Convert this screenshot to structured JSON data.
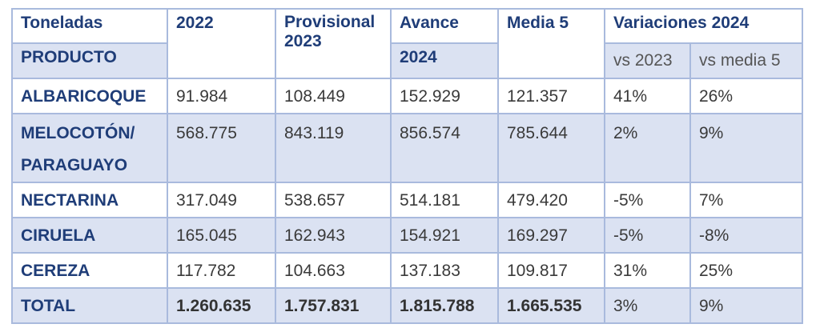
{
  "header": {
    "toneladas": "Toneladas",
    "producto": "PRODUCTO",
    "y2022": "2022",
    "provisional": "Provisional 2023",
    "avance": "Avance",
    "avance_year": "2024",
    "media": "Media 5",
    "variaciones": "Variaciones 2024",
    "vs_2023": "vs 2023",
    "vs_media": "vs media 5"
  },
  "rows": [
    [
      "ALBARICOQUE",
      "91.984",
      "108.449",
      "152.929",
      "121.357",
      "41%",
      "26%"
    ],
    [
      "MELOCOTÓN/ PARAGUAYO",
      "568.775",
      "843.119",
      "856.574",
      "785.644",
      "2%",
      "9%"
    ],
    [
      "NECTARINA",
      "317.049",
      "538.657",
      "514.181",
      "479.420",
      "-5%",
      "7%"
    ],
    [
      "CIRUELA",
      "165.045",
      "162.943",
      "154.921",
      "169.297",
      "-5%",
      "-8%"
    ],
    [
      "CEREZA",
      "117.782",
      "104.663",
      "137.183",
      "109.817",
      "31%",
      "25%"
    ],
    [
      "TOTAL",
      "1.260.635",
      "1.757.831",
      "1.815.788",
      "1.665.535",
      "3%",
      "9%"
    ]
  ]
}
